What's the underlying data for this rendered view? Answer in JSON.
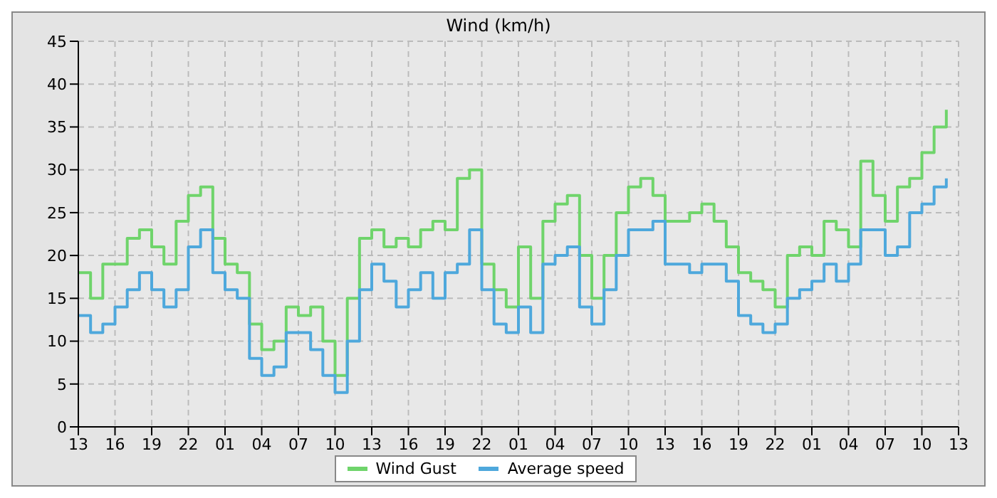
{
  "chart_data": {
    "type": "step",
    "title": "Wind (km/h)",
    "categories": [
      "13",
      null,
      null,
      "16",
      null,
      null,
      "19",
      null,
      null,
      "22",
      null,
      null,
      "01",
      null,
      null,
      "04",
      null,
      null,
      "07",
      null,
      null,
      "10",
      null,
      null,
      "13",
      null,
      null,
      "16",
      null,
      null,
      "19",
      null,
      null,
      "22",
      null,
      null,
      "01",
      null,
      null,
      "04",
      null,
      null,
      "07",
      null,
      null,
      "10",
      null,
      null,
      "13",
      null,
      null,
      "16",
      null,
      null,
      "19",
      null,
      null,
      "22",
      null,
      null,
      "01",
      null,
      null,
      "04",
      null,
      null,
      "07",
      null,
      null,
      "10",
      null,
      null,
      "13"
    ],
    "series": [
      {
        "name": "Wind Gust",
        "color": "#6fd46b",
        "values": [
          18,
          15,
          19,
          19,
          22,
          23,
          21,
          19,
          24,
          27,
          28,
          22,
          19,
          18,
          12,
          9,
          10,
          14,
          13,
          14,
          10,
          6,
          15,
          22,
          23,
          21,
          22,
          21,
          23,
          24,
          23,
          29,
          30,
          19,
          16,
          14,
          21,
          15,
          24,
          26,
          27,
          20,
          15,
          20,
          25,
          28,
          29,
          27,
          24,
          24,
          25,
          26,
          24,
          21,
          18,
          17,
          16,
          14,
          20,
          21,
          20,
          24,
          23,
          21,
          31,
          27,
          24,
          28,
          29,
          32,
          35,
          37,
          null
        ]
      },
      {
        "name": "Average speed",
        "color": "#4ea8dc",
        "values": [
          13,
          11,
          12,
          14,
          16,
          18,
          16,
          14,
          16,
          21,
          23,
          18,
          16,
          15,
          8,
          6,
          7,
          11,
          11,
          9,
          6,
          4,
          10,
          16,
          19,
          17,
          14,
          16,
          18,
          15,
          18,
          19,
          23,
          16,
          12,
          11,
          14,
          11,
          19,
          20,
          21,
          14,
          12,
          16,
          20,
          23,
          23,
          24,
          19,
          19,
          18,
          19,
          19,
          17,
          13,
          12,
          11,
          12,
          15,
          16,
          17,
          19,
          17,
          19,
          23,
          23,
          20,
          21,
          25,
          26,
          28,
          29,
          null
        ]
      }
    ],
    "ylim": [
      0,
      45
    ],
    "yticks": [
      0,
      5,
      10,
      15,
      20,
      25,
      30,
      35,
      40,
      45
    ],
    "grid": true,
    "legend": "bottom",
    "line_style": "solid",
    "marker": "none"
  }
}
